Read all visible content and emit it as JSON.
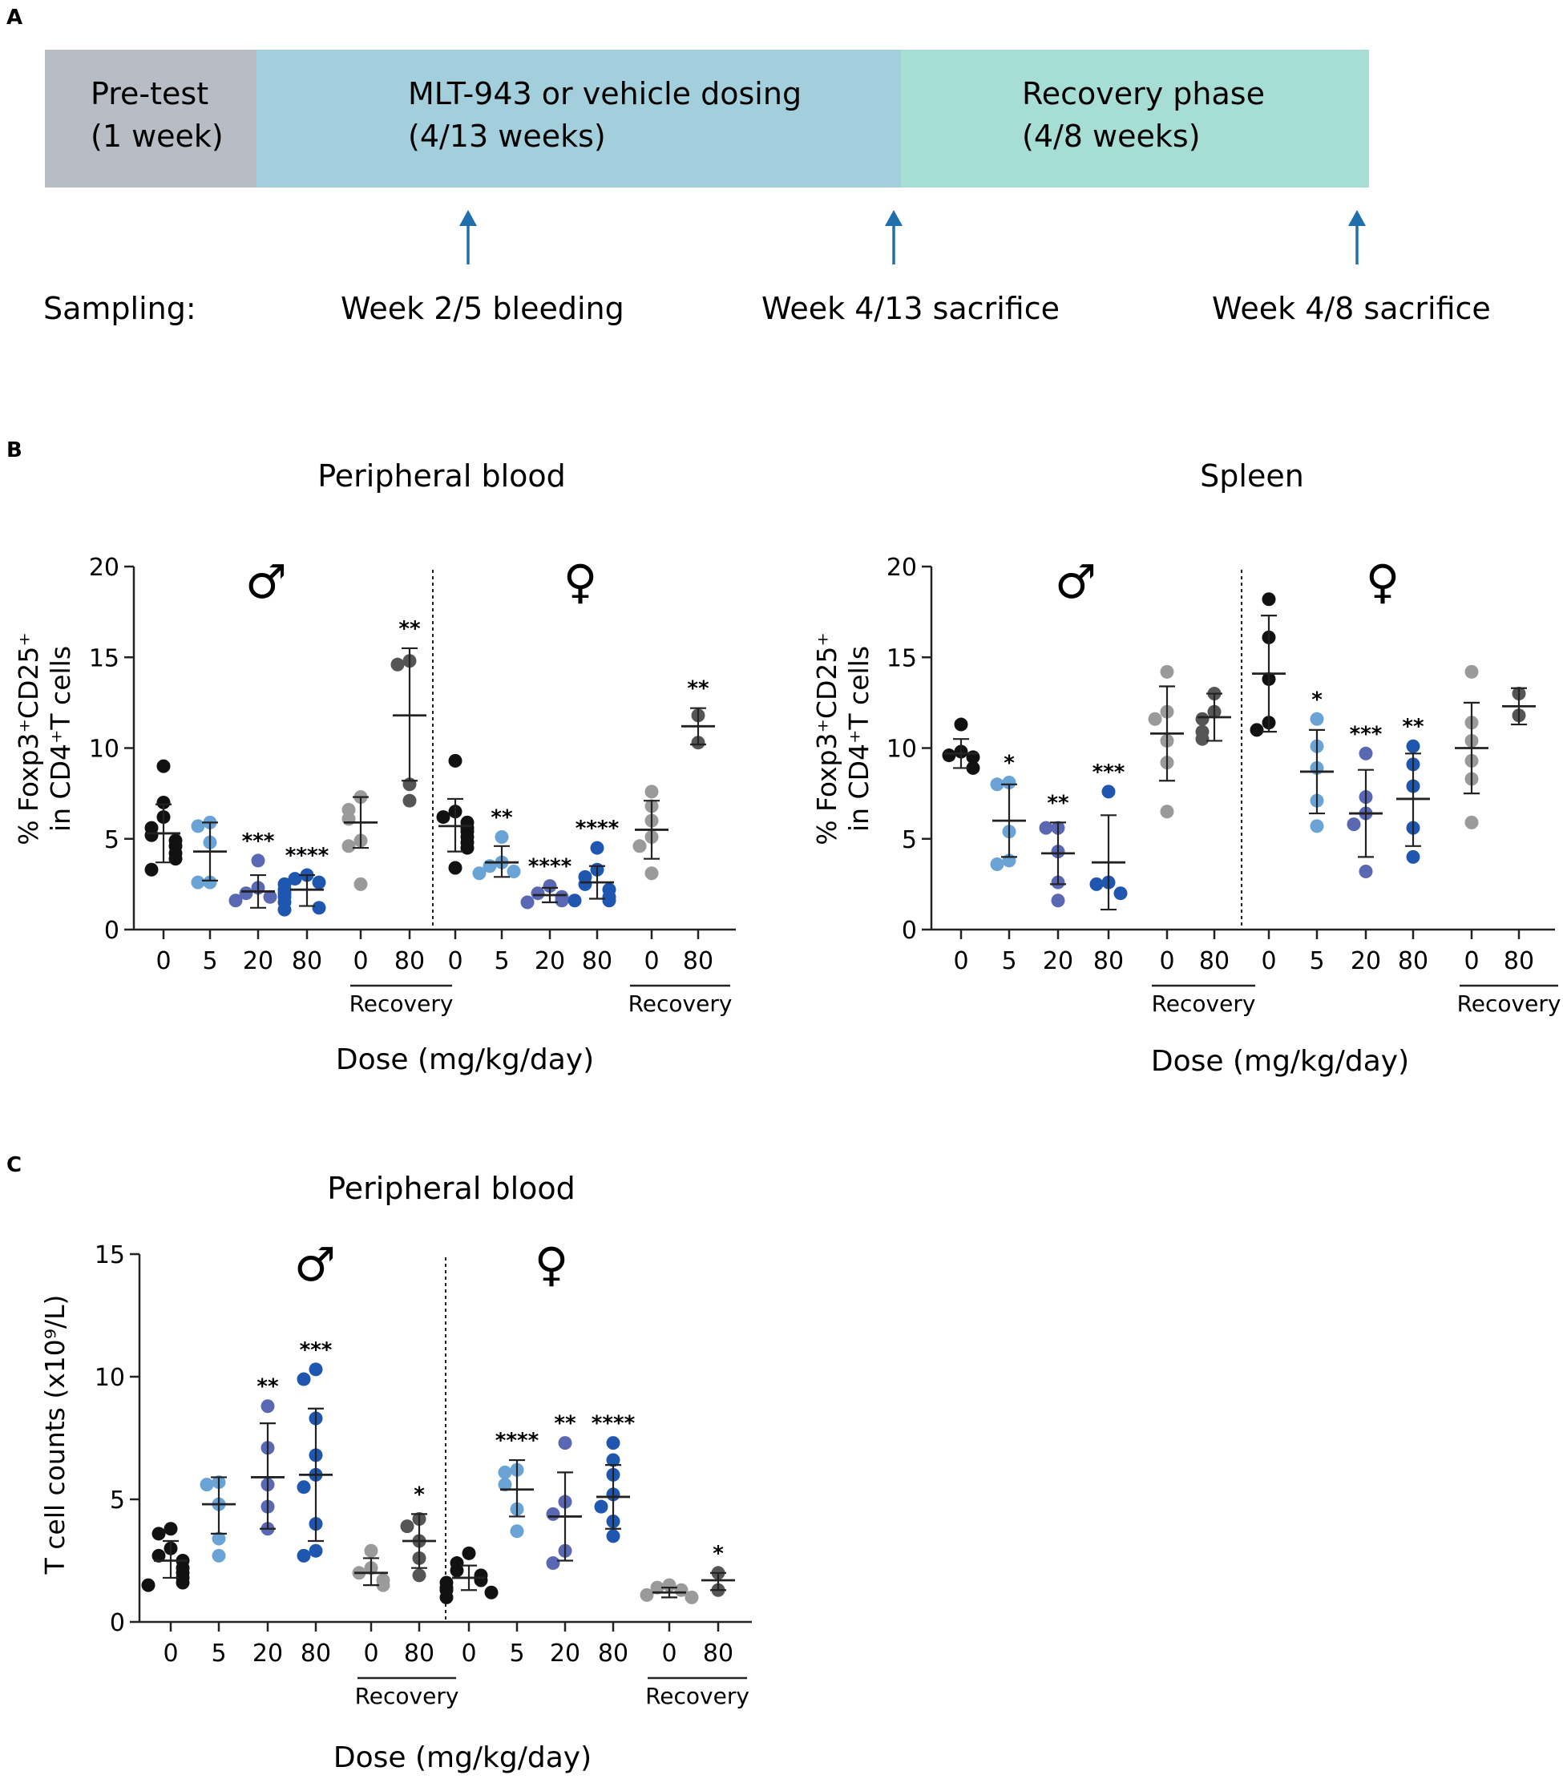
{
  "panels": {
    "A": "A",
    "B": "B",
    "C": "C"
  },
  "timeline": {
    "phases": [
      {
        "line1": "Pre-test",
        "line2": "(1 week)",
        "color": "#b8bcc5"
      },
      {
        "line1": "MLT-943 or vehicle dosing",
        "line2": "(4/13 weeks)",
        "color": "#a3cfdc"
      },
      {
        "line1": "Recovery phase",
        "line2": "(4/8 weeks)",
        "color": "#a6ddd5"
      }
    ],
    "sampling_label": "Sampling:",
    "samples": [
      "Week 2/5 bleeding",
      "Week 4/13 sacrifice",
      "Week 4/8 sacrifice"
    ],
    "arrow_color": "#1f6fad"
  },
  "colors": {
    "g0": "#111111",
    "g5": "#6aa3d6",
    "g20": "#5a68b3",
    "g80": "#1f57b0",
    "rec0": "#9a9a9a",
    "rec80": "#555555"
  },
  "chart_data": [
    {
      "type": "scatter",
      "title": "Peripheral blood",
      "ylabel_line1": "% Foxp3⁺CD25⁺",
      "ylabel_line2": "in CD4⁺T cells",
      "xlabel": "Dose (mg/kg/day)",
      "ylim": [
        0,
        20
      ],
      "yticks": [
        "0",
        "5",
        "10",
        "15",
        "20"
      ],
      "sexes": [
        "♂",
        "♀"
      ],
      "recovery_label": "Recovery",
      "groups": [
        {
          "sex": "male",
          "tick": "0",
          "color_key": "g0",
          "mean": 5.3,
          "sd_low": 3.7,
          "sd_high": 6.9,
          "sig": "",
          "points": [
            9.0,
            7.0,
            6.2,
            5.6,
            5.2,
            4.9,
            4.6,
            4.2,
            3.9,
            3.3
          ]
        },
        {
          "sex": "male",
          "tick": "5",
          "color_key": "g5",
          "mean": 4.3,
          "sd_low": 2.7,
          "sd_high": 5.9,
          "sig": "",
          "points": [
            5.9,
            5.7,
            4.8,
            2.6,
            2.6
          ]
        },
        {
          "sex": "male",
          "tick": "20",
          "color_key": "g20",
          "mean": 2.1,
          "sd_low": 1.2,
          "sd_high": 3.0,
          "sig": "***",
          "points": [
            3.8,
            2.3,
            2.0,
            1.8,
            1.6
          ]
        },
        {
          "sex": "male",
          "tick": "80",
          "color_key": "g80",
          "mean": 2.2,
          "sd_low": 1.3,
          "sd_high": 3.0,
          "sig": "****",
          "points": [
            3.0,
            2.8,
            2.6,
            2.5,
            2.2,
            2.0,
            1.8,
            1.5,
            1.2,
            1.1
          ]
        },
        {
          "sex": "male",
          "tick": "0",
          "color_key": "rec0",
          "recovery": true,
          "mean": 5.9,
          "sd_low": 4.5,
          "sd_high": 7.3,
          "sig": "",
          "points": [
            7.3,
            6.6,
            6.1,
            4.9,
            4.6,
            2.5
          ]
        },
        {
          "sex": "male",
          "tick": "80",
          "color_key": "rec80",
          "recovery": true,
          "mean": 11.8,
          "sd_low": 8.2,
          "sd_high": 15.5,
          "sig": "**",
          "points": [
            14.8,
            14.6,
            8.0,
            7.1
          ]
        },
        {
          "sex": "female",
          "tick": "0",
          "color_key": "g0",
          "mean": 5.7,
          "sd_low": 4.3,
          "sd_high": 7.2,
          "sig": "",
          "points": [
            9.3,
            6.5,
            6.2,
            5.9,
            5.6,
            5.4,
            5.1,
            4.8,
            4.5,
            3.4
          ]
        },
        {
          "sex": "female",
          "tick": "5",
          "color_key": "g5",
          "mean": 3.7,
          "sd_low": 2.9,
          "sd_high": 4.6,
          "sig": "**",
          "points": [
            5.1,
            3.7,
            3.5,
            3.2,
            3.1
          ]
        },
        {
          "sex": "female",
          "tick": "20",
          "color_key": "g20",
          "mean": 1.9,
          "sd_low": 1.5,
          "sd_high": 2.3,
          "sig": "****",
          "points": [
            2.4,
            2.0,
            1.8,
            1.6,
            1.5
          ]
        },
        {
          "sex": "female",
          "tick": "80",
          "color_key": "g80",
          "mean": 2.6,
          "sd_low": 1.7,
          "sd_high": 3.5,
          "sig": "****",
          "points": [
            4.5,
            3.3,
            2.9,
            2.5,
            2.2,
            1.8,
            1.6,
            1.6
          ]
        },
        {
          "sex": "female",
          "tick": "0",
          "color_key": "rec0",
          "recovery": true,
          "mean": 5.5,
          "sd_low": 3.9,
          "sd_high": 7.1,
          "sig": "",
          "points": [
            7.6,
            6.8,
            6.0,
            5.1,
            4.6,
            3.1
          ]
        },
        {
          "sex": "female",
          "tick": "80",
          "color_key": "rec80",
          "recovery": true,
          "mean": 11.2,
          "sd_low": 10.2,
          "sd_high": 12.2,
          "sig": "**",
          "points": [
            11.8,
            10.3
          ]
        }
      ]
    },
    {
      "type": "scatter",
      "title": "Spleen",
      "ylabel_line1": "% Foxp3⁺CD25⁺",
      "ylabel_line2": "in CD4⁺T cells",
      "xlabel": "Dose (mg/kg/day)",
      "ylim": [
        0,
        20
      ],
      "yticks": [
        "0",
        "5",
        "10",
        "15",
        "20"
      ],
      "sexes": [
        "♂",
        "♀"
      ],
      "recovery_label": "Recovery",
      "groups": [
        {
          "sex": "male",
          "tick": "0",
          "color_key": "g0",
          "mean": 9.7,
          "sd_low": 8.9,
          "sd_high": 10.5,
          "sig": "",
          "points": [
            11.3,
            9.8,
            9.6,
            9.5,
            8.9
          ]
        },
        {
          "sex": "male",
          "tick": "5",
          "color_key": "g5",
          "mean": 6.0,
          "sd_low": 4.0,
          "sd_high": 8.0,
          "sig": "*",
          "points": [
            8.1,
            8.0,
            5.4,
            3.8,
            3.6
          ]
        },
        {
          "sex": "male",
          "tick": "20",
          "color_key": "g20",
          "mean": 4.2,
          "sd_low": 2.5,
          "sd_high": 5.9,
          "sig": "**",
          "points": [
            5.6,
            5.6,
            4.3,
            2.6,
            1.6
          ]
        },
        {
          "sex": "male",
          "tick": "80",
          "color_key": "g80",
          "mean": 3.7,
          "sd_low": 1.1,
          "sd_high": 6.3,
          "sig": "***",
          "points": [
            7.6,
            2.6,
            2.5,
            2.0
          ]
        },
        {
          "sex": "male",
          "tick": "0",
          "color_key": "rec0",
          "recovery": true,
          "mean": 10.8,
          "sd_low": 8.2,
          "sd_high": 13.4,
          "sig": "",
          "points": [
            14.2,
            12.0,
            11.6,
            10.4,
            9.2,
            6.5
          ]
        },
        {
          "sex": "male",
          "tick": "80",
          "color_key": "rec80",
          "recovery": true,
          "mean": 11.7,
          "sd_low": 10.4,
          "sd_high": 13.0,
          "sig": "",
          "points": [
            13.0,
            12.0,
            11.6,
            10.9,
            10.5
          ]
        },
        {
          "sex": "female",
          "tick": "0",
          "color_key": "g0",
          "mean": 14.1,
          "sd_low": 10.9,
          "sd_high": 17.3,
          "sig": "",
          "points": [
            18.2,
            16.1,
            13.8,
            11.4,
            11.0
          ]
        },
        {
          "sex": "female",
          "tick": "5",
          "color_key": "g5",
          "mean": 8.7,
          "sd_low": 6.4,
          "sd_high": 11.0,
          "sig": "*",
          "points": [
            11.6,
            10.1,
            8.9,
            7.1,
            5.7
          ]
        },
        {
          "sex": "female",
          "tick": "20",
          "color_key": "g20",
          "mean": 6.4,
          "sd_low": 4.0,
          "sd_high": 8.8,
          "sig": "***",
          "points": [
            9.7,
            7.3,
            6.4,
            5.8,
            3.2
          ]
        },
        {
          "sex": "female",
          "tick": "80",
          "color_key": "g80",
          "mean": 7.2,
          "sd_low": 4.6,
          "sd_high": 9.7,
          "sig": "**",
          "points": [
            10.1,
            9.1,
            7.9,
            5.6,
            4.0
          ]
        },
        {
          "sex": "female",
          "tick": "0",
          "color_key": "rec0",
          "recovery": true,
          "mean": 10.0,
          "sd_low": 7.5,
          "sd_high": 12.5,
          "sig": "",
          "points": [
            14.2,
            11.4,
            10.4,
            9.3,
            8.3,
            5.9
          ]
        },
        {
          "sex": "female",
          "tick": "80",
          "color_key": "rec80",
          "recovery": true,
          "mean": 12.3,
          "sd_low": 11.3,
          "sd_high": 13.3,
          "sig": "",
          "points": [
            13.0,
            11.8
          ]
        }
      ]
    },
    {
      "type": "scatter",
      "title": "Peripheral blood",
      "ylabel_line1": "T cell counts (x10⁹/L)",
      "ylabel_line2": "",
      "xlabel": "Dose (mg/kg/day)",
      "ylim": [
        0,
        15
      ],
      "yticks": [
        "0",
        "5",
        "10",
        "15"
      ],
      "sexes": [
        "♂",
        "♀"
      ],
      "recovery_label": "Recovery",
      "groups": [
        {
          "sex": "male",
          "tick": "0",
          "color_key": "g0",
          "mean": 2.5,
          "sd_low": 1.8,
          "sd_high": 3.3,
          "sig": "",
          "points": [
            3.8,
            3.6,
            3.0,
            2.7,
            2.5,
            2.2,
            2.0,
            1.8,
            1.6,
            1.5
          ]
        },
        {
          "sex": "male",
          "tick": "5",
          "color_key": "g5",
          "mean": 4.8,
          "sd_low": 3.6,
          "sd_high": 5.9,
          "sig": "",
          "points": [
            5.7,
            5.6,
            4.8,
            3.4,
            2.7
          ]
        },
        {
          "sex": "male",
          "tick": "20",
          "color_key": "g20",
          "mean": 5.9,
          "sd_low": 3.8,
          "sd_high": 8.1,
          "sig": "**",
          "points": [
            8.8,
            7.1,
            5.6,
            4.7,
            3.8
          ]
        },
        {
          "sex": "male",
          "tick": "80",
          "color_key": "g80",
          "mean": 6.0,
          "sd_low": 3.3,
          "sd_high": 8.7,
          "sig": "***",
          "points": [
            10.3,
            9.9,
            8.3,
            6.8,
            6.0,
            5.5,
            4.0,
            2.9,
            2.7
          ]
        },
        {
          "sex": "male",
          "tick": "0",
          "color_key": "rec0",
          "recovery": true,
          "mean": 2.0,
          "sd_low": 1.5,
          "sd_high": 2.6,
          "sig": "",
          "points": [
            2.9,
            2.2,
            2.0,
            1.7,
            1.5
          ]
        },
        {
          "sex": "male",
          "tick": "80",
          "color_key": "rec80",
          "recovery": true,
          "mean": 3.3,
          "sd_low": 2.2,
          "sd_high": 4.4,
          "sig": "*",
          "points": [
            4.2,
            3.9,
            3.3,
            2.6,
            1.9
          ]
        },
        {
          "sex": "female",
          "tick": "0",
          "color_key": "g0",
          "mean": 1.8,
          "sd_low": 1.3,
          "sd_high": 2.3,
          "sig": "",
          "points": [
            2.8,
            2.4,
            2.1,
            1.9,
            1.7,
            1.6,
            1.4,
            1.3,
            1.2,
            1.0
          ]
        },
        {
          "sex": "female",
          "tick": "5",
          "color_key": "g5",
          "mean": 5.4,
          "sd_low": 4.3,
          "sd_high": 6.6,
          "sig": "****",
          "points": [
            6.2,
            6.1,
            5.6,
            4.6,
            3.7
          ]
        },
        {
          "sex": "female",
          "tick": "20",
          "color_key": "g20",
          "mean": 4.3,
          "sd_low": 2.5,
          "sd_high": 6.1,
          "sig": "**",
          "points": [
            7.3,
            4.9,
            4.4,
            2.9,
            2.4
          ]
        },
        {
          "sex": "female",
          "tick": "80",
          "color_key": "g80",
          "mean": 5.1,
          "sd_low": 3.8,
          "sd_high": 6.4,
          "sig": "****",
          "points": [
            7.3,
            6.6,
            6.0,
            5.2,
            4.7,
            4.1,
            3.5
          ]
        },
        {
          "sex": "female",
          "tick": "0",
          "color_key": "rec0",
          "recovery": true,
          "mean": 1.2,
          "sd_low": 1.0,
          "sd_high": 1.4,
          "sig": "",
          "points": [
            1.5,
            1.4,
            1.3,
            1.1,
            1.0
          ]
        },
        {
          "sex": "female",
          "tick": "80",
          "color_key": "rec80",
          "recovery": true,
          "mean": 1.7,
          "sd_low": 1.3,
          "sd_high": 2.0,
          "sig": "*",
          "points": [
            2.0,
            1.3
          ]
        }
      ]
    }
  ]
}
